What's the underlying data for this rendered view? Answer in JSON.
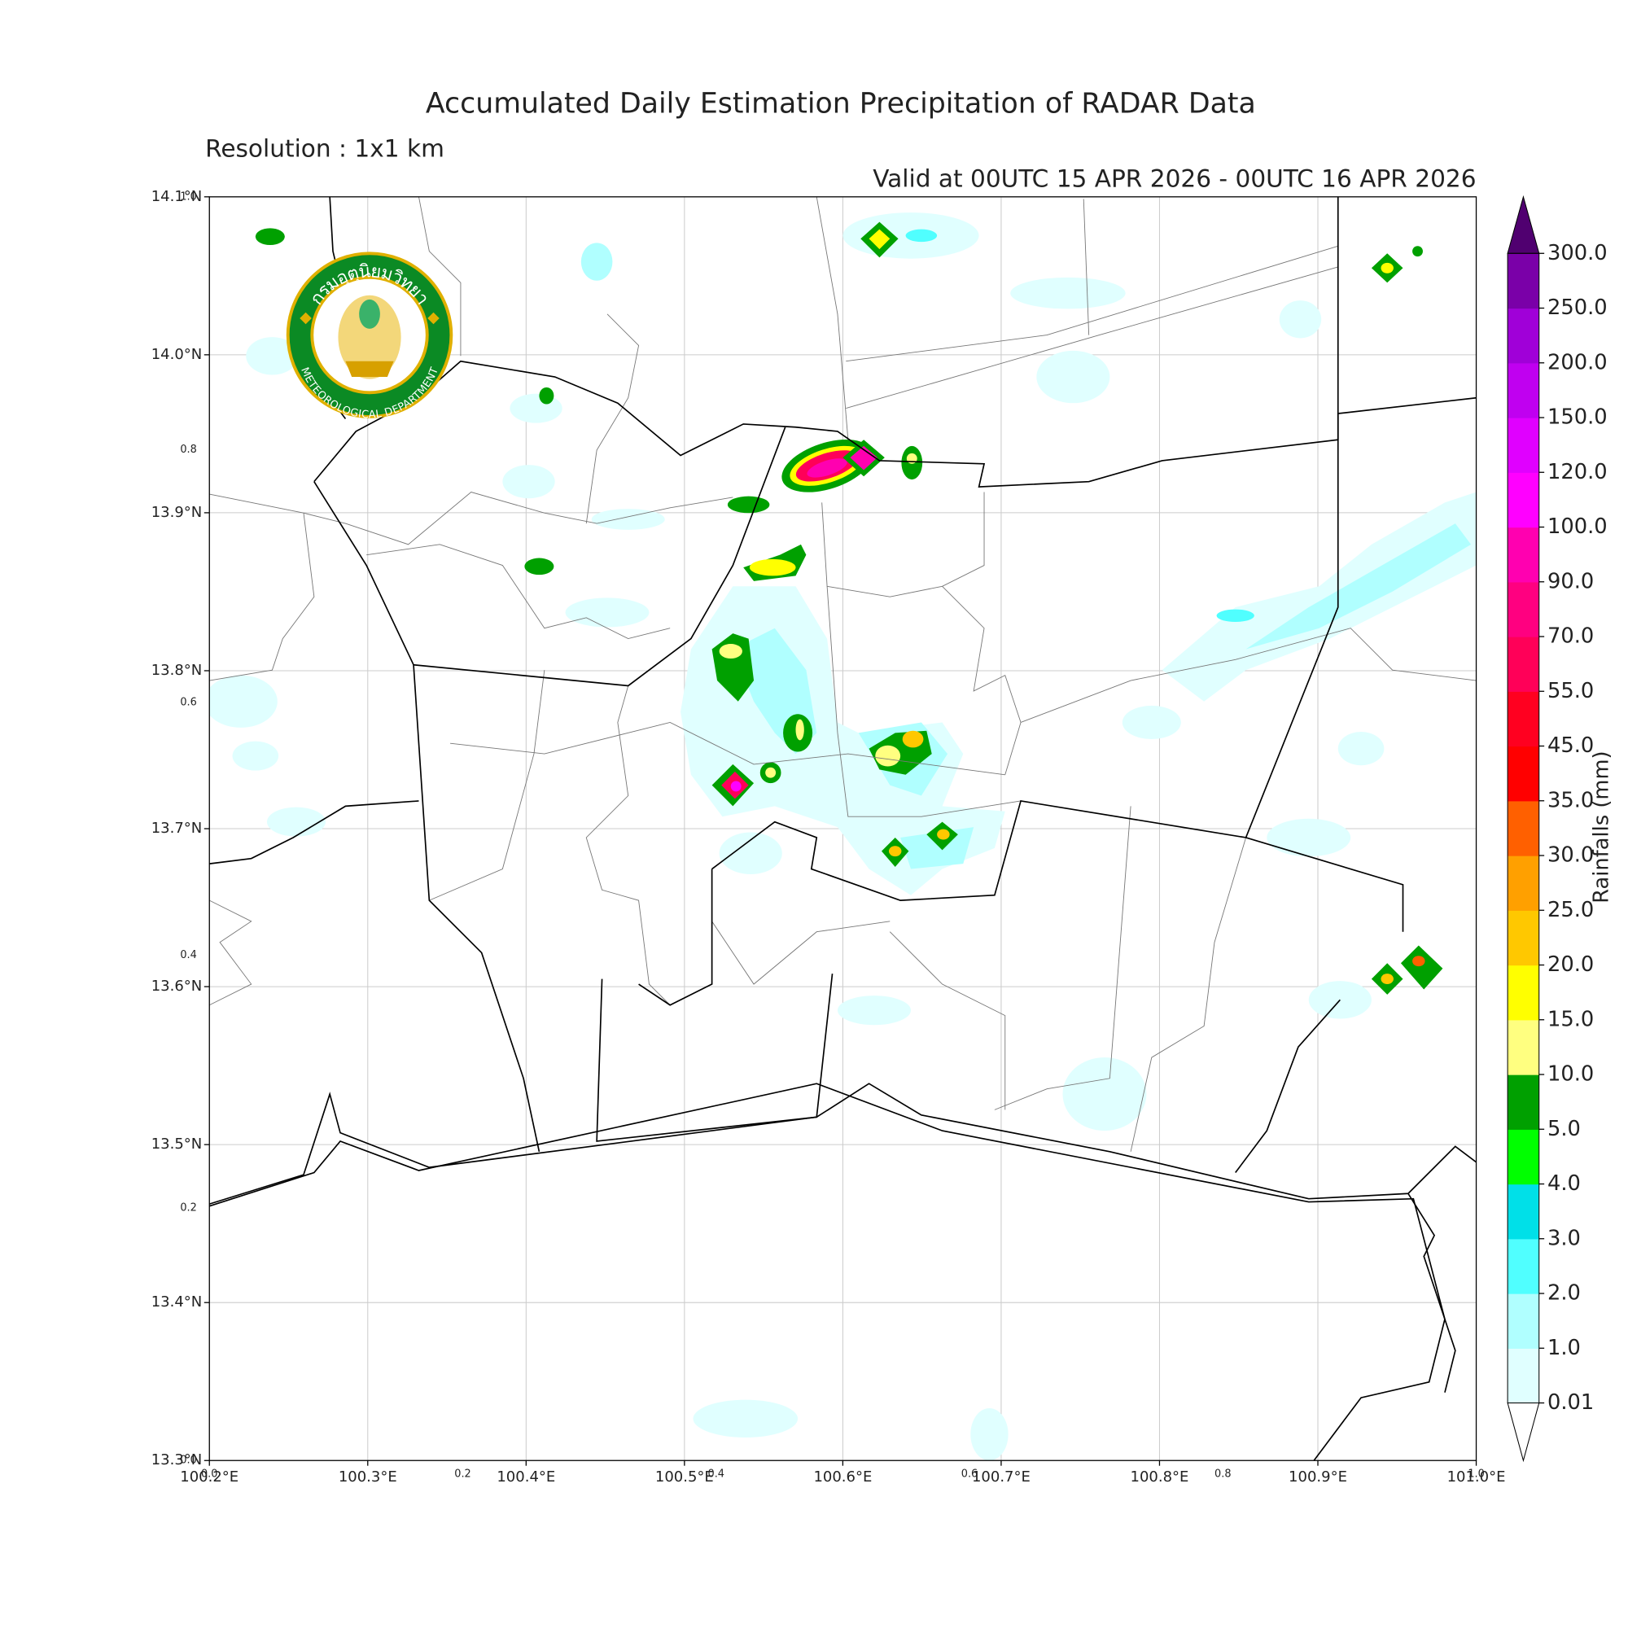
{
  "title": "Accumulated Daily Estimation Precipitation of RADAR Data",
  "subtitle": "Resolution : 1x1 km",
  "valid_time": "Valid at 00UTC 15 APR 2026 - 00UTC 16 APR 2026",
  "map": {
    "xlim": [
      100.2,
      101.0
    ],
    "ylim": [
      13.3,
      14.1
    ],
    "xticks": [
      {
        "value": 100.2,
        "label": "100.2°E"
      },
      {
        "value": 100.3,
        "label": "100.3°E"
      },
      {
        "value": 100.4,
        "label": "100.4°E"
      },
      {
        "value": 100.5,
        "label": "100.5°E"
      },
      {
        "value": 100.6,
        "label": "100.6°E"
      },
      {
        "value": 100.7,
        "label": "100.7°E"
      },
      {
        "value": 100.8,
        "label": "100.8°E"
      },
      {
        "value": 100.9,
        "label": "100.9°E"
      },
      {
        "value": 101.0,
        "label": "101.0°E"
      }
    ],
    "yticks": [
      {
        "value": 13.3,
        "label": "13.3°N"
      },
      {
        "value": 13.4,
        "label": "13.4°N"
      },
      {
        "value": 13.5,
        "label": "13.5°N"
      },
      {
        "value": 13.6,
        "label": "13.6°N"
      },
      {
        "value": 13.7,
        "label": "13.7°N"
      },
      {
        "value": 13.8,
        "label": "13.8°N"
      },
      {
        "value": 13.9,
        "label": "13.9°N"
      },
      {
        "value": 14.0,
        "label": "14.0°N"
      },
      {
        "value": 14.1,
        "label": "14.1°N"
      }
    ],
    "frac_ticks": [
      {
        "value": 0,
        "label": "0.0"
      },
      0.2,
      0.4,
      0.6,
      0.8,
      {
        "value": 1,
        "label": "1.0"
      }
    ],
    "grid": true
  },
  "colorbar": {
    "label": "Rainfalls (mm)",
    "levels": [
      {
        "value": 0.01,
        "label": "0.01"
      },
      {
        "value": 1,
        "label": "1.0"
      },
      {
        "value": 2,
        "label": "2.0"
      },
      {
        "value": 3,
        "label": "3.0"
      },
      {
        "value": 4,
        "label": "4.0"
      },
      {
        "value": 5,
        "label": "5.0"
      },
      {
        "value": 10,
        "label": "10.0"
      },
      {
        "value": 15,
        "label": "15.0"
      },
      {
        "value": 20,
        "label": "20.0"
      },
      {
        "value": 25,
        "label": "25.0"
      },
      {
        "value": 30,
        "label": "30.0"
      },
      {
        "value": 35,
        "label": "35.0"
      },
      {
        "value": 45,
        "label": "45.0"
      },
      {
        "value": 55,
        "label": "55.0"
      },
      {
        "value": 70,
        "label": "70.0"
      },
      {
        "value": 90,
        "label": "90.0"
      },
      {
        "value": 100,
        "label": "100.0"
      },
      {
        "value": 120,
        "label": "120.0"
      },
      {
        "value": 150,
        "label": "150.0"
      },
      {
        "value": 200,
        "label": "200.0"
      },
      {
        "value": 250,
        "label": "250.0"
      },
      {
        "value": 300,
        "label": "300.0"
      }
    ],
    "colors": [
      "#e0ffff",
      "#b0ffff",
      "#50ffff",
      "#00e0e8",
      "#00ff00",
      "#00a000",
      "#ffff80",
      "#ffff00",
      "#ffc800",
      "#ffa000",
      "#ff6000",
      "#ff0000",
      "#ff0020",
      "#ff0058",
      "#ff0080",
      "#ff00b0",
      "#ff00ff",
      "#e000ff",
      "#c000f0",
      "#a000d8",
      "#7a00a8"
    ],
    "over_color": "#500070",
    "under_color": "#ffffff"
  },
  "logo": {
    "thai_text": "กรมอุตุนิยมวิทยา",
    "english_text": "METEOROLOGICAL DEPARTMENT"
  }
}
